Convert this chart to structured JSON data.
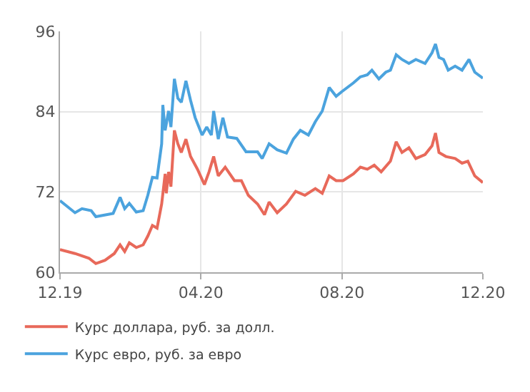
{
  "chart_data": {
    "type": "line",
    "xlim": [
      "2019-12-01",
      "2020-12-01"
    ],
    "xticks": [
      {
        "value": "2019-12-01",
        "label": "12.19"
      },
      {
        "value": "2020-04-01",
        "label": "04.20"
      },
      {
        "value": "2020-08-01",
        "label": "08.20"
      },
      {
        "value": "2020-12-01",
        "label": "12.20"
      }
    ],
    "ylim": [
      60,
      96
    ],
    "yticks": [
      60,
      72,
      84,
      96
    ],
    "grid": true,
    "legend": "bottom left",
    "marker": "none",
    "line_style": "solid",
    "series": [
      {
        "name": "Курс доллара, руб. за долл.",
        "color": "#e8695a",
        "x": [
          "2019-12-01",
          "2019-12-14",
          "2019-12-26",
          "2020-01-01",
          "2020-01-09",
          "2020-01-17",
          "2020-01-22",
          "2020-01-26",
          "2020-01-30",
          "2020-02-05",
          "2020-02-11",
          "2020-02-15",
          "2020-02-19",
          "2020-02-23",
          "2020-02-27",
          "2020-03-01",
          "2020-03-02",
          "2020-03-04",
          "2020-03-06",
          "2020-03-09",
          "2020-03-12",
          "2020-03-15",
          "2020-03-19",
          "2020-03-23",
          "2020-03-29",
          "2020-04-04",
          "2020-04-08",
          "2020-04-12",
          "2020-04-16",
          "2020-04-22",
          "2020-04-30",
          "2020-05-06",
          "2020-05-12",
          "2020-05-20",
          "2020-05-26",
          "2020-05-30",
          "2020-06-06",
          "2020-06-14",
          "2020-06-22",
          "2020-06-30",
          "2020-07-09",
          "2020-07-15",
          "2020-07-21",
          "2020-07-27",
          "2020-08-02",
          "2020-08-11",
          "2020-08-17",
          "2020-08-23",
          "2020-08-29",
          "2020-09-04",
          "2020-09-12",
          "2020-09-17",
          "2020-09-22",
          "2020-09-28",
          "2020-10-04",
          "2020-10-12",
          "2020-10-18",
          "2020-10-21",
          "2020-10-24",
          "2020-10-30",
          "2020-11-07",
          "2020-11-13",
          "2020-11-18",
          "2020-11-24",
          "2020-12-01"
        ],
        "values": [
          63.4,
          62.8,
          62.1,
          61.3,
          61.8,
          62.8,
          64.1,
          63.1,
          64.4,
          63.7,
          64.1,
          65.4,
          67.0,
          66.6,
          70.2,
          74.7,
          71.8,
          75.0,
          72.8,
          81.2,
          79.2,
          77.9,
          79.9,
          77.3,
          75.4,
          73.1,
          75.0,
          77.3,
          74.4,
          75.7,
          73.7,
          73.7,
          71.5,
          70.2,
          68.6,
          70.5,
          68.9,
          70.2,
          72.1,
          71.5,
          72.5,
          71.8,
          74.4,
          73.7,
          73.7,
          74.7,
          75.7,
          75.4,
          76.0,
          75.0,
          76.6,
          79.5,
          77.9,
          78.6,
          77.0,
          77.6,
          78.9,
          80.8,
          77.9,
          77.3,
          77.0,
          76.3,
          76.6,
          74.4,
          73.4
        ]
      },
      {
        "name": "Курс евро, руб. за евро",
        "color": "#4ba3de",
        "x": [
          "2019-12-01",
          "2019-12-14",
          "2019-12-20",
          "2019-12-28",
          "2020-01-01",
          "2020-01-16",
          "2020-01-22",
          "2020-01-26",
          "2020-01-30",
          "2020-02-05",
          "2020-02-11",
          "2020-02-15",
          "2020-02-19",
          "2020-02-23",
          "2020-02-27",
          "2020-02-28",
          "2020-03-01",
          "2020-03-04",
          "2020-03-06",
          "2020-03-09",
          "2020-03-12",
          "2020-03-15",
          "2020-03-19",
          "2020-03-23",
          "2020-03-27",
          "2020-04-02",
          "2020-04-06",
          "2020-04-10",
          "2020-04-12",
          "2020-04-16",
          "2020-04-20",
          "2020-04-24",
          "2020-05-02",
          "2020-05-10",
          "2020-05-20",
          "2020-05-24",
          "2020-05-30",
          "2020-06-06",
          "2020-06-14",
          "2020-06-20",
          "2020-06-26",
          "2020-07-03",
          "2020-07-09",
          "2020-07-15",
          "2020-07-21",
          "2020-07-27",
          "2020-08-01",
          "2020-08-11",
          "2020-08-17",
          "2020-08-23",
          "2020-08-27",
          "2020-09-02",
          "2020-09-08",
          "2020-09-12",
          "2020-09-17",
          "2020-09-22",
          "2020-09-28",
          "2020-10-04",
          "2020-10-12",
          "2020-10-18",
          "2020-10-21",
          "2020-10-24",
          "2020-10-28",
          "2020-11-01",
          "2020-11-07",
          "2020-11-13",
          "2020-11-19",
          "2020-11-24",
          "2020-12-01"
        ],
        "values": [
          70.7,
          68.9,
          69.5,
          69.2,
          68.3,
          68.8,
          71.2,
          69.5,
          70.3,
          69.0,
          69.2,
          71.5,
          74.2,
          74.1,
          79.2,
          85.0,
          81.2,
          84.1,
          81.7,
          88.9,
          86.0,
          85.4,
          88.6,
          85.7,
          83.1,
          80.5,
          81.7,
          80.5,
          84.1,
          79.9,
          83.1,
          80.2,
          80.0,
          78.0,
          78.0,
          77.0,
          79.2,
          78.3,
          77.8,
          79.9,
          81.2,
          80.5,
          82.5,
          84.1,
          87.6,
          86.3,
          87.0,
          88.3,
          89.2,
          89.5,
          90.2,
          88.9,
          89.9,
          90.2,
          92.5,
          91.8,
          91.2,
          91.8,
          91.2,
          92.8,
          94.1,
          92.1,
          91.8,
          90.2,
          90.8,
          90.2,
          91.8,
          89.9,
          89.0
        ]
      }
    ]
  }
}
